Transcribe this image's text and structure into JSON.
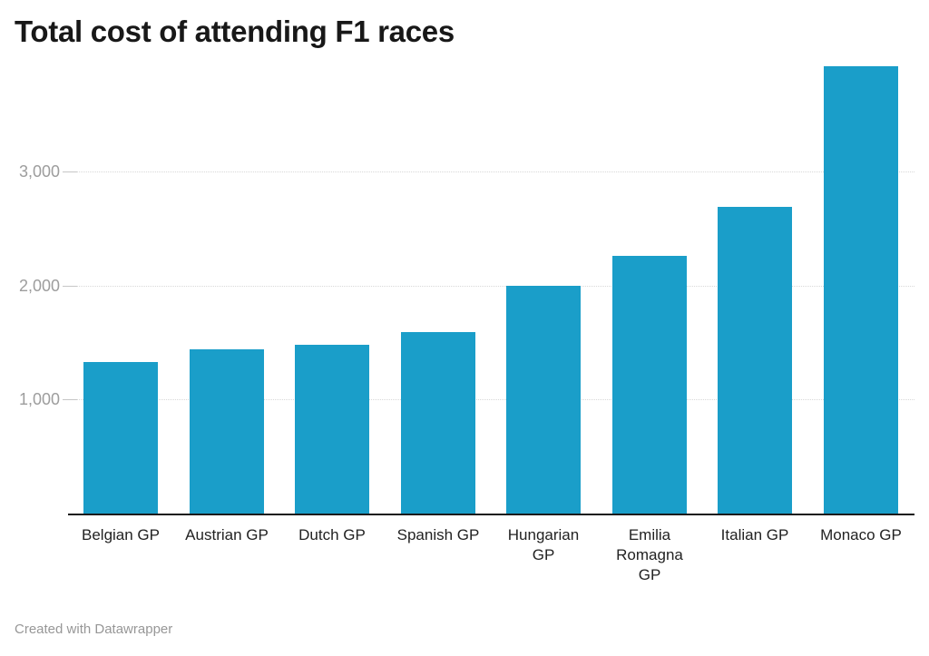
{
  "chart_data": {
    "type": "bar",
    "title": "Total cost of attending F1 races",
    "categories": [
      "Belgian GP",
      "Austrian GP",
      "Dutch GP",
      "Spanish GP",
      "Hungarian GP",
      "Emilia Romagna GP",
      "Italian GP",
      "Monaco GP"
    ],
    "category_display_lines": [
      [
        "Belgian GP"
      ],
      [
        "Austrian GP"
      ],
      [
        "Dutch GP"
      ],
      [
        "Spanish GP"
      ],
      [
        "Hungarian",
        "GP"
      ],
      [
        "Emilia",
        "Romagna",
        "GP"
      ],
      [
        "Italian GP"
      ],
      [
        "Monaco GP"
      ]
    ],
    "values": [
      1330,
      1440,
      1480,
      1590,
      2000,
      2260,
      2690,
      3920
    ],
    "xlabel": "",
    "ylabel": "",
    "y_axis": {
      "range": [
        0,
        4030
      ],
      "ticks": [
        {
          "value": 1000,
          "label": "1,000"
        },
        {
          "value": 2000,
          "label": "2,000"
        },
        {
          "value": 3000,
          "label": "3,000"
        }
      ]
    },
    "grid": true,
    "legend": "none",
    "bar_color": "#1a9ec9"
  },
  "footer": {
    "attribution": "Created with Datawrapper"
  }
}
